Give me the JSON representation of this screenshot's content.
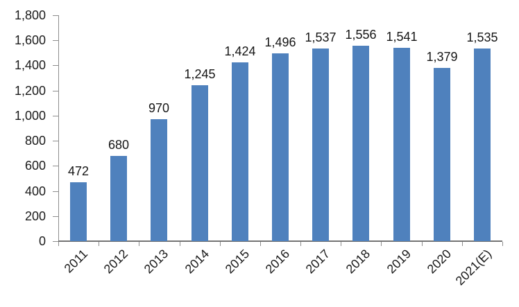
{
  "chart_data": {
    "type": "bar",
    "title": "",
    "xlabel": "",
    "ylabel": "",
    "categories": [
      "2011",
      "2012",
      "2013",
      "2014",
      "2015",
      "2016",
      "2017",
      "2018",
      "2019",
      "2020",
      "2021(E)"
    ],
    "values": [
      472,
      680,
      970,
      1245,
      1424,
      1496,
      1537,
      1556,
      1541,
      1379,
      1535
    ],
    "value_labels": [
      "472",
      "680",
      "970",
      "1,245",
      "1,424",
      "1,496",
      "1,537",
      "1,556",
      "1,541",
      "1,379",
      "1,535"
    ],
    "ylim": [
      0,
      1800
    ],
    "ytick_step": 200,
    "ytick_labels": [
      "0",
      "200",
      "400",
      "600",
      "800",
      "1,000",
      "1,200",
      "1,400",
      "1,600",
      "1,800"
    ],
    "grid": false,
    "legend_position": "none",
    "bar_color": "#4F81BD",
    "axis_color": "#8c8c8c",
    "baseline_color": "#737373",
    "text_color": "#1a1a1a",
    "xtick_rotation_deg": 45
  }
}
